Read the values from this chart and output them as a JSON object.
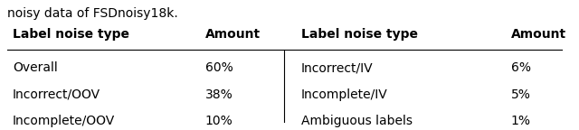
{
  "caption": "noisy data of FSDnoisy18k.",
  "col_headers": [
    "Label noise type",
    "Amount"
  ],
  "left_rows": [
    [
      "Overall",
      "60%"
    ],
    [
      "Incorrect/OOV",
      "38%"
    ],
    [
      "Incomplete/OOV",
      "10%"
    ]
  ],
  "right_rows": [
    [
      "Incorrect/IV",
      "6%"
    ],
    [
      "Incomplete/IV",
      "5%"
    ],
    [
      "Ambiguous labels",
      "1%"
    ]
  ],
  "background_color": "#ffffff",
  "text_color": "#000000",
  "header_fontsize": 10,
  "body_fontsize": 10,
  "caption_fontsize": 10
}
